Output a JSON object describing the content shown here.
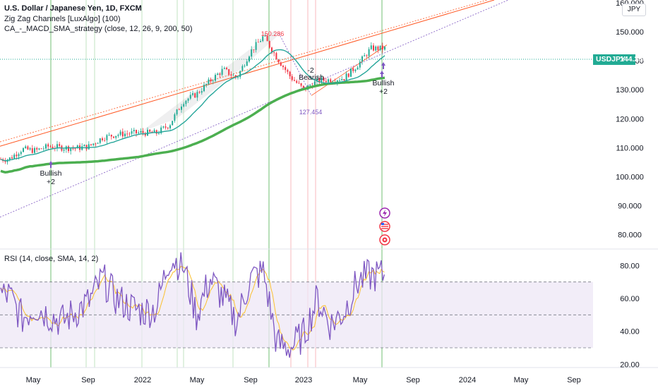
{
  "header": {
    "symbol_title": "U.S. Dollar / Japanese Yen, 1D, FXCM",
    "indicator_1": "Zig Zag Channels [LuxAlgo] (100)",
    "indicator_2": "CA_-_MACD_SMA_strategy (close, 12, 26, 9, 200, 50)",
    "currency_button": "JPY"
  },
  "price_tag": {
    "symbol": "USDJPY",
    "price": "144.280",
    "color": "#22ab94"
  },
  "rsi_panel": {
    "title": "RSI (14, close, SMA, 14, 2)"
  },
  "chart_data": [
    {
      "type": "line",
      "ylim": [
        75,
        161
      ],
      "y_ticks": [
        "80.000",
        "90.000",
        "100.000",
        "110.000",
        "120.000",
        "130.000",
        "140.000",
        "150.000",
        "160.000"
      ],
      "x_ticks": [
        "May",
        "Sep",
        "2022",
        "May",
        "Sep",
        "2023",
        "May",
        "Sep",
        "2024",
        "May",
        "Sep"
      ],
      "series": [],
      "approx_close": [
        {
          "x": "2021-03",
          "y": 106.0
        },
        {
          "x": "2021-04",
          "y": 109.5
        },
        {
          "x": "2021-05",
          "y": 109.0
        },
        {
          "x": "2021-06",
          "y": 110.5
        },
        {
          "x": "2021-07",
          "y": 110.0
        },
        {
          "x": "2021-08",
          "y": 109.8
        },
        {
          "x": "2021-09",
          "y": 110.5
        },
        {
          "x": "2021-10",
          "y": 113.5
        },
        {
          "x": "2021-11",
          "y": 114.5
        },
        {
          "x": "2021-12",
          "y": 115.0
        },
        {
          "x": "2022-01",
          "y": 115.2
        },
        {
          "x": "2022-02",
          "y": 115.0
        },
        {
          "x": "2022-03",
          "y": 118.0
        },
        {
          "x": "2022-04",
          "y": 126.0
        },
        {
          "x": "2022-05",
          "y": 128.5
        },
        {
          "x": "2022-06",
          "y": 133.0
        },
        {
          "x": "2022-07",
          "y": 137.0
        },
        {
          "x": "2022-08",
          "y": 134.0
        },
        {
          "x": "2022-09",
          "y": 143.0
        },
        {
          "x": "2022-10",
          "y": 148.5
        },
        {
          "x": "2022-11",
          "y": 141.0
        },
        {
          "x": "2022-12",
          "y": 134.5
        },
        {
          "x": "2023-01",
          "y": 130.0
        },
        {
          "x": "2023-02",
          "y": 133.0
        },
        {
          "x": "2023-03",
          "y": 133.5
        },
        {
          "x": "2023-04",
          "y": 134.0
        },
        {
          "x": "2023-05",
          "y": 138.5
        },
        {
          "x": "2023-06",
          "y": 144.28
        }
      ],
      "annotations": [
        {
          "text": "150.286",
          "color": "#f23645"
        },
        {
          "text": "127.454",
          "color": "#7e57c2"
        },
        {
          "text": "-2",
          "color": "#131722"
        },
        {
          "text": "Bearish",
          "color": "#131722"
        },
        {
          "text": "Bullish",
          "color": "#131722"
        },
        {
          "text": "+2",
          "color": "#131722"
        },
        {
          "text": "Bullish",
          "color": "#131722"
        },
        {
          "text": "+2",
          "color": "#131722"
        }
      ]
    },
    {
      "type": "line",
      "ylim": [
        18,
        90
      ],
      "y_ticks": [
        "20.00",
        "40.00",
        "60.00",
        "80.00"
      ],
      "bands": [
        30,
        50,
        70
      ],
      "series": [],
      "approx_rsi": [
        {
          "x": "2021-03",
          "y": 62
        },
        {
          "x": "2021-04",
          "y": 48
        },
        {
          "x": "2021-05",
          "y": 55
        },
        {
          "x": "2021-06",
          "y": 50
        },
        {
          "x": "2021-07",
          "y": 46
        },
        {
          "x": "2021-08",
          "y": 52
        },
        {
          "x": "2021-09",
          "y": 58
        },
        {
          "x": "2021-10",
          "y": 72
        },
        {
          "x": "2021-11",
          "y": 60
        },
        {
          "x": "2021-12",
          "y": 55
        },
        {
          "x": "2022-01",
          "y": 52
        },
        {
          "x": "2022-02",
          "y": 54
        },
        {
          "x": "2022-03",
          "y": 85
        },
        {
          "x": "2022-04",
          "y": 80
        },
        {
          "x": "2022-05",
          "y": 50
        },
        {
          "x": "2022-06",
          "y": 72
        },
        {
          "x": "2022-07",
          "y": 60
        },
        {
          "x": "2022-08",
          "y": 46
        },
        {
          "x": "2022-09",
          "y": 72
        },
        {
          "x": "2022-10",
          "y": 76
        },
        {
          "x": "2022-11",
          "y": 32
        },
        {
          "x": "2022-12",
          "y": 30
        },
        {
          "x": "2023-01",
          "y": 38
        },
        {
          "x": "2023-02",
          "y": 60
        },
        {
          "x": "2023-03",
          "y": 44
        },
        {
          "x": "2023-04",
          "y": 52
        },
        {
          "x": "2023-05",
          "y": 70
        },
        {
          "x": "2023-06",
          "y": 74
        }
      ]
    }
  ],
  "colors": {
    "candle_up": "#22ab94",
    "candle_down": "#f23645",
    "sma_200": "#4caf50",
    "sma_50": "#26a69a",
    "channel_upper": "#ff5722",
    "channel_lower": "#7e57c2",
    "rsi_line": "#7e57c2",
    "rsi_ma": "#fbc02d",
    "rsi_band": "#ede7f6"
  },
  "icons": [
    "lightning-icon",
    "us-flag-icon",
    "target-icon"
  ]
}
